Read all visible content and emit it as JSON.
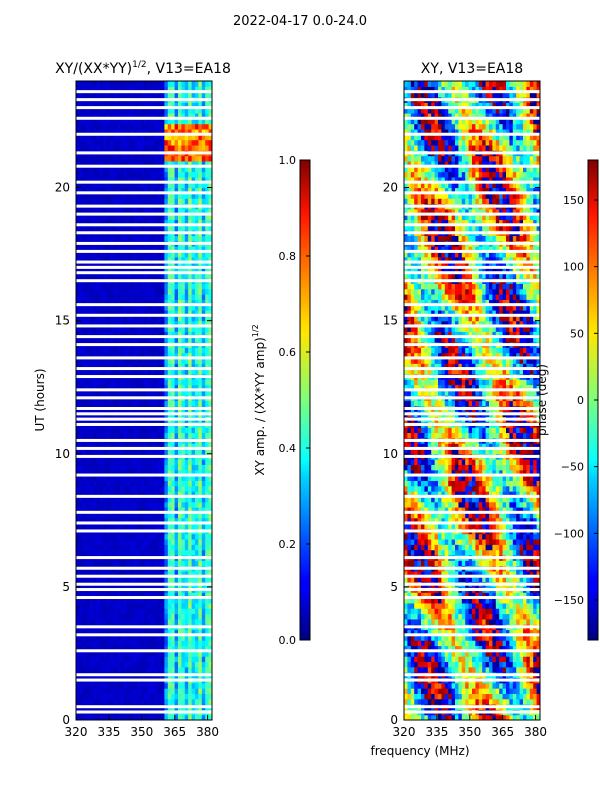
{
  "suptitle": "2022-04-17 0.0-24.0",
  "chart_data": [
    {
      "type": "heatmap",
      "title": "XY/(XX*YY)^{1/2}, V13=EA18",
      "title_main": "XY/(XX*YY)",
      "title_sup": "1/2",
      "title_tail": ", V13=EA18",
      "xlabel": "frequency (MHz)",
      "ylabel": "UT (hours)",
      "xlim": [
        320,
        382
      ],
      "ylim": [
        0,
        24
      ],
      "xticks": [
        320,
        335,
        350,
        365,
        380
      ],
      "yticks": [
        0,
        5,
        10,
        15,
        20
      ],
      "colormap": "jet",
      "colorbar": {
        "label": "XY amp. / (XX*YY amp)^{1/2}",
        "label_main": "XY amp. / (XX*YY amp)",
        "label_sup": "1/2",
        "range": [
          0.0,
          1.0
        ],
        "ticks": [
          "0.0",
          "0.2",
          "0.4",
          "0.6",
          "0.8",
          "1.0"
        ]
      },
      "features": {
        "background_level": 0.05,
        "bright_band_MHz": [
          361,
          382
        ],
        "bright_band_level": 0.4,
        "strong_rfi_hours": [
          21.0,
          22.5
        ],
        "strong_rfi_level": 0.9
      }
    },
    {
      "type": "heatmap",
      "title": "XY, V13=EA18",
      "xlabel": "frequency (MHz)",
      "ylabel": "",
      "xlim": [
        320,
        382
      ],
      "ylim": [
        0,
        24
      ],
      "xticks": [
        320,
        335,
        350,
        365,
        380
      ],
      "yticks": [
        0,
        5,
        10,
        15,
        20
      ],
      "colormap": "jet",
      "colorbar": {
        "label": "phase (deg)",
        "range": [
          -180,
          180
        ],
        "ticks": [
          "-150",
          "-100",
          "-50",
          "0",
          "50",
          "100",
          "150"
        ]
      },
      "features": {
        "unit": "deg",
        "pattern": "wrapped phase, noisy"
      }
    }
  ],
  "flagged_hours": [
    0.3,
    0.5,
    1.5,
    1.7,
    2.6,
    3.2,
    3.5,
    4.6,
    4.9,
    5.1,
    5.4,
    5.7,
    6.1,
    7.1,
    7.4,
    7.8,
    8.4,
    9.2,
    9.9,
    10.2,
    10.5,
    11.1,
    11.3,
    11.5,
    11.7,
    12.1,
    12.4,
    12.9,
    13.2,
    13.6,
    14.1,
    14.4,
    14.8,
    15.2,
    15.6,
    16.5,
    16.8,
    17.0,
    17.2,
    17.6,
    17.9,
    18.3,
    18.6,
    19.0,
    19.3,
    19.8,
    20.2,
    20.8,
    21.3,
    22.0,
    22.6,
    23.0,
    23.3,
    23.6
  ],
  "ui": {
    "axis_color": "#000000",
    "background": "#ffffff"
  }
}
